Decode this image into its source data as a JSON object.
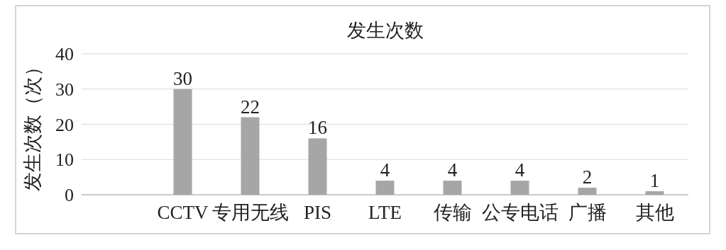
{
  "chart_data": {
    "type": "bar",
    "title": "发生次数",
    "ylabel": "发生次数（次）",
    "categories": [
      null,
      "CCTV",
      "专用无线",
      "PIS",
      "LTE",
      "传输",
      "公专电话",
      "广播",
      "其他"
    ],
    "values": [
      null,
      30,
      22,
      16,
      4,
      4,
      4,
      2,
      1
    ],
    "color": "#a6a6a6",
    "ylim": [
      0,
      40
    ],
    "yticks": [
      0,
      10,
      20,
      30,
      40
    ],
    "grid": "y",
    "data_labels": true
  }
}
